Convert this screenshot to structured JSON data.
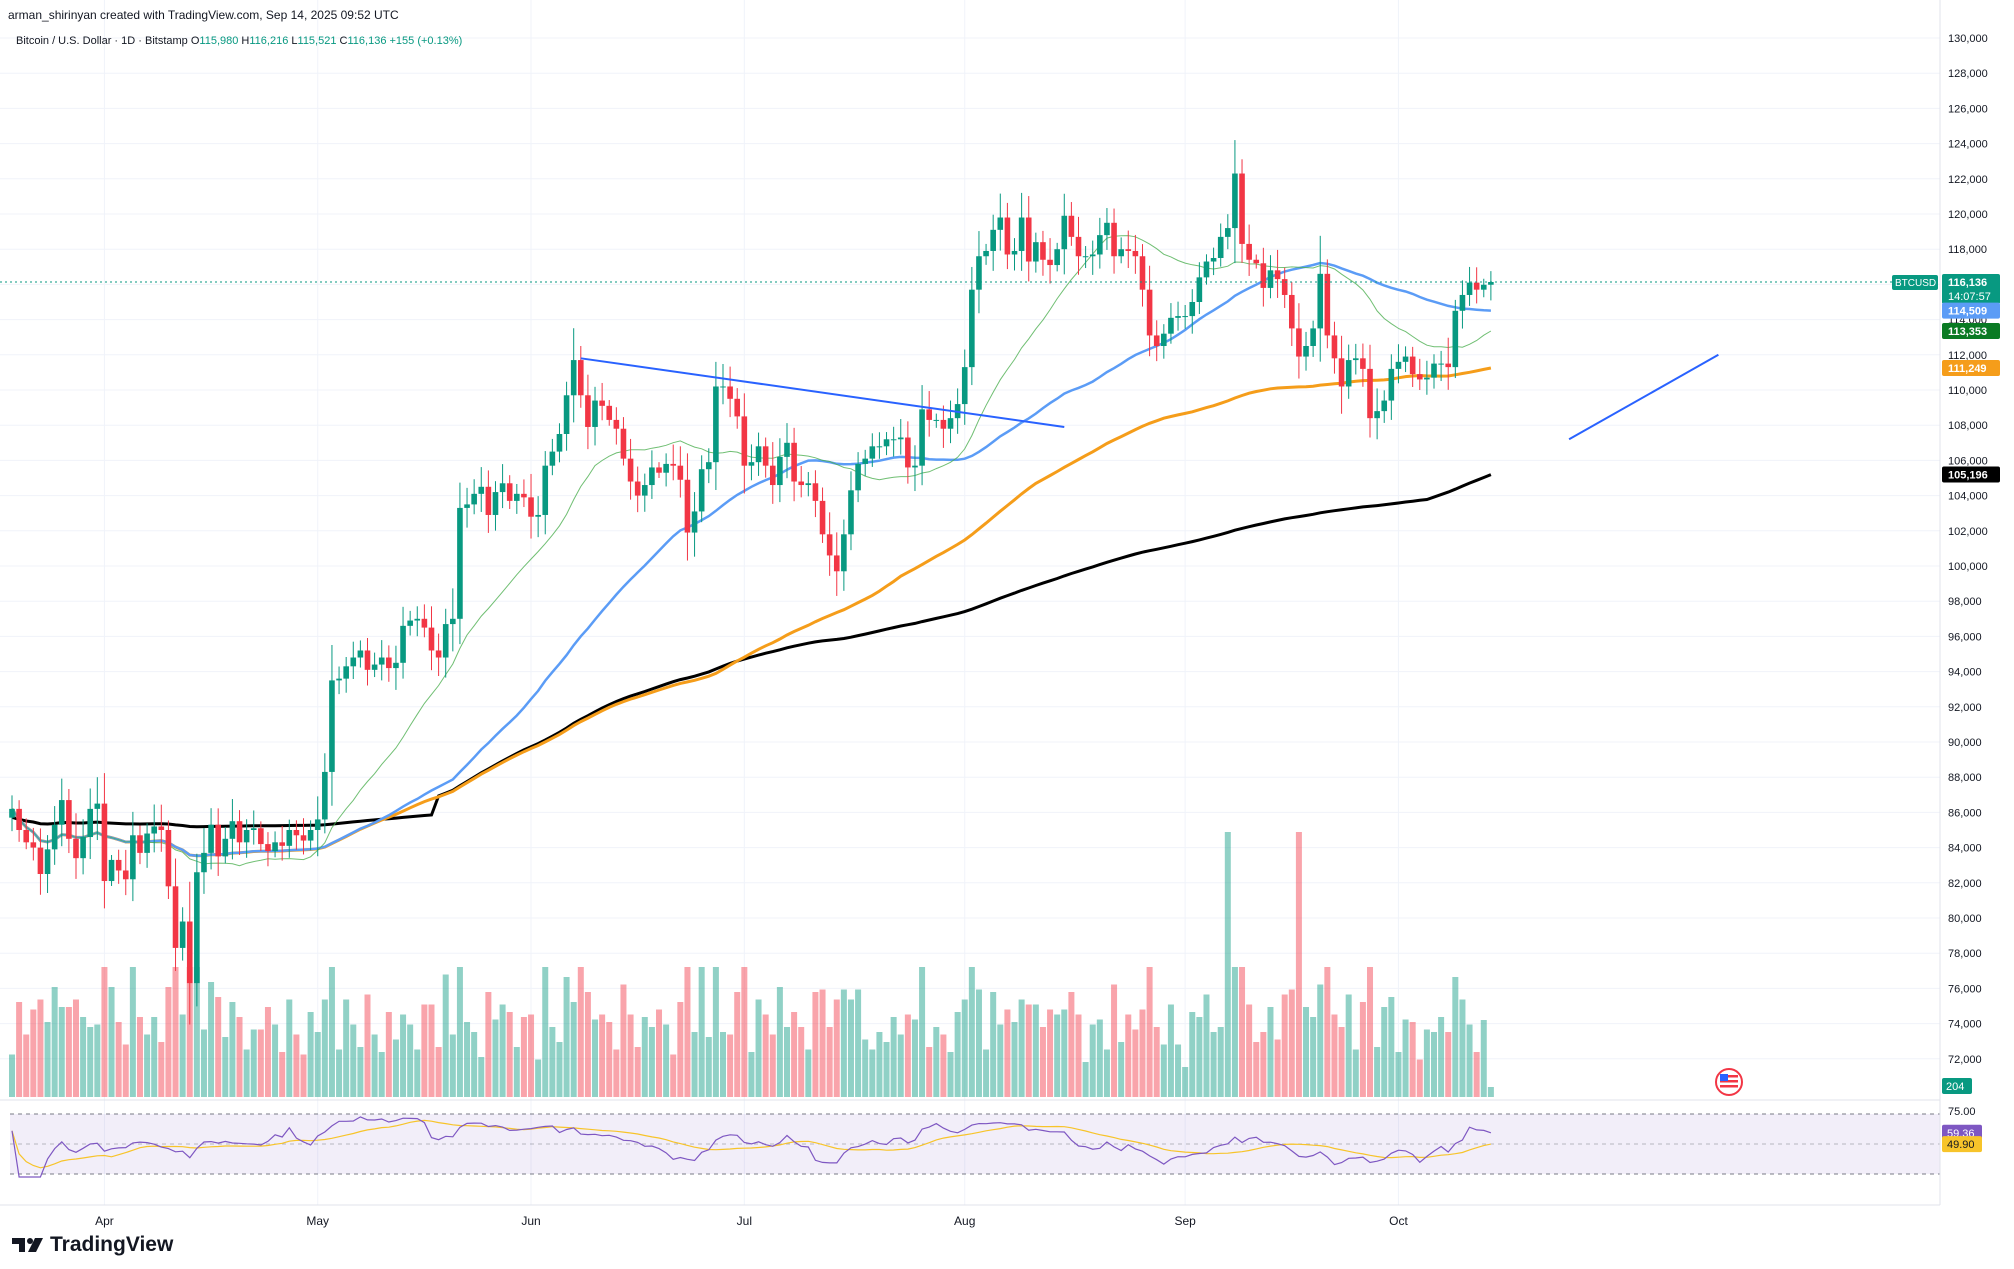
{
  "header": {
    "author": "arman_shirinyan created with TradingView.com, Sep 14, 2025 09:52 UTC",
    "symbol": "Bitcoin / U.S. Dollar · 1D · Bitstamp",
    "open_label": "O",
    "open": "115,980",
    "high_label": "H",
    "high": "116,216",
    "low_label": "L",
    "low": "115,521",
    "close_label": "C",
    "close": "116,136",
    "change": "+155 (+0.13%)"
  },
  "brand": {
    "name": "TradingView"
  },
  "chart_data": {
    "type": "candlestick",
    "symbol": "BTCUSD",
    "x_tick_labels": [
      "Apr",
      "May",
      "Jun",
      "Jul",
      "Aug",
      "Sep",
      "Oct"
    ],
    "y_tick_labels": [
      "72,000",
      "74,000",
      "76,000",
      "78,000",
      "80,000",
      "82,000",
      "84,000",
      "86,000",
      "88,000",
      "90,000",
      "92,000",
      "94,000",
      "96,000",
      "98,000",
      "100,000",
      "102,000",
      "104,000",
      "106,000",
      "108,000",
      "110,000",
      "112,000",
      "114,000",
      "116,000",
      "118,000",
      "120,000",
      "122,000",
      "124,000",
      "126,000",
      "128,000",
      "130,000"
    ],
    "ylim": [
      70000,
      130000
    ],
    "up_color": "#089981",
    "down_color": "#f23645",
    "price_closes": [
      86200,
      85000,
      84300,
      84000,
      82500,
      83900,
      85300,
      86700,
      84500,
      83400,
      84600,
      86200,
      86500,
      82100,
      83300,
      82700,
      82200,
      84700,
      83700,
      84800,
      85200,
      85000,
      81800,
      78300,
      79800,
      76300,
      82600,
      83700,
      85300,
      83500,
      84500,
      85500,
      84300,
      85000,
      85100,
      84200,
      83800,
      84300,
      84100,
      85000,
      84700,
      84400,
      85000,
      85600,
      88300,
      93500,
      93600,
      94300,
      94800,
      95200,
      94100,
      94400,
      94800,
      94200,
      94500,
      96600,
      96900,
      97000,
      96500,
      95200,
      94800,
      96700,
      97000,
      103300,
      103500,
      104100,
      104500,
      102900,
      104200,
      104700,
      103700,
      104100,
      103900,
      102800,
      102900,
      105700,
      106500,
      107500,
      109700,
      111700,
      109700,
      107900,
      109400,
      109100,
      108300,
      107800,
      106100,
      104800,
      104000,
      104600,
      105600,
      105300,
      105800,
      105700,
      104900,
      101900,
      103100,
      105500,
      105900,
      110200,
      110200,
      109500,
      108500,
      105700,
      105900,
      106800,
      105700,
      104600,
      106200,
      107000,
      104800,
      104600,
      104700,
      103700,
      101800,
      100600,
      99700,
      101800,
      104300,
      105800,
      106100,
      106800,
      106800,
      107200,
      107200,
      107300,
      105600,
      105700,
      108900,
      108300,
      108300,
      107800,
      108400,
      109200,
      111300,
      115700,
      117600,
      117900,
      119100,
      119800,
      117700,
      117900,
      119800,
      117300,
      118400,
      117400,
      117100,
      118000,
      119900,
      118700,
      117600,
      117600,
      117700,
      118800,
      119500,
      117600,
      118000,
      117900,
      117600,
      115700,
      113100,
      112500,
      113200,
      114100,
      114200,
      114200,
      115000,
      116400,
      117300,
      117500,
      118700,
      119200,
      122300,
      118300,
      117400,
      117200,
      115800,
      116800,
      116300,
      115400,
      113500,
      111900,
      112500,
      113500,
      116600,
      113100,
      111800,
      110200,
      111700,
      111800,
      111200,
      108400,
      108800,
      109400,
      111200,
      111600,
      111900,
      110900,
      110600,
      110700,
      111500,
      111500,
      111300,
      114500,
      115400,
      116100,
      115700,
      115980,
      116136
    ],
    "sma_blue_last": 114509,
    "sma_green_last": 113353,
    "sma_orange_last": 111249,
    "sma_black_last": 105196,
    "price_tags": [
      {
        "label": "BTCUSD",
        "value": "116,136",
        "countdown": "14:07:57",
        "color": "#089981"
      },
      {
        "value": "114,509",
        "color": "#5b9cf6"
      },
      {
        "value": "113,353",
        "color": "#0a7a23"
      },
      {
        "value": "111,249",
        "color": "#f59d1a"
      },
      {
        "value": "105,196",
        "color": "#000000"
      }
    ],
    "volume_last_label": "204",
    "rsi": {
      "upper_band_label": "75.00",
      "value": "59.36",
      "signal": "49.90",
      "value_color": "#7e57c2",
      "signal_color": "#f7c42a"
    },
    "trendlines": [
      {
        "name": "descending resistance",
        "from": {
          "day": 80,
          "price": 111800
        },
        "to": {
          "day": 148,
          "price": 107900
        }
      },
      {
        "name": "ascending support",
        "from": {
          "day": 219,
          "price": 107200
        },
        "to": {
          "day": 240,
          "price": 112000
        }
      }
    ],
    "events": [
      {
        "name": "US flag marker"
      }
    ]
  }
}
